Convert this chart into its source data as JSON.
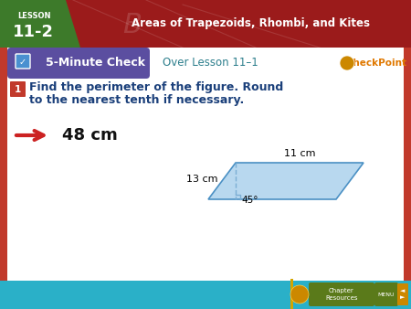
{
  "title_lesson_line1": "LESSON",
  "title_lesson_line2": "11-2",
  "title_main": "Areas of Trapezoids, Rhombi, and Kites",
  "check_label": "5-Minute Check",
  "over_lesson": "Over Lesson 11–1",
  "question_num": "1",
  "question_text_line1": "Find the perimeter of the figure. Round",
  "question_text_line2": "to the nearest tenth if necessary.",
  "answer_text": "48 cm",
  "side_label1": "11 cm",
  "side_label2": "13 cm",
  "angle_label": "45°",
  "bg_red": "#c1392b",
  "bg_white": "#ffffff",
  "header_dark_red": "#9b1b1b",
  "lesson_green": "#3d7a2a",
  "check_purple": "#5b4ea0",
  "question_blue": "#1a3f7a",
  "answer_black": "#111111",
  "parallelogram_fill": "#b8d8ef",
  "parallelogram_edge": "#4a90c4",
  "dashed_color": "#7baed4",
  "arrow_red": "#cc2222",
  "footer_teal": "#2ab0c8",
  "footer_gold": "#d4a500",
  "checkpoint_orange": "#e07800",
  "over_lesson_teal": "#2c7e8c"
}
